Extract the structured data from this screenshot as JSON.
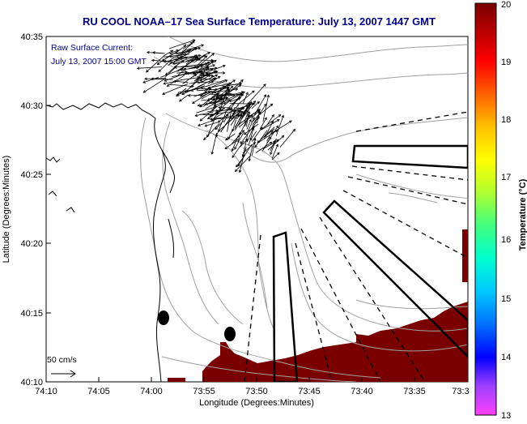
{
  "title": "RU COOL  NOAA–17  Sea Surface Temperature:  July 13, 2007 1447 GMT",
  "annotation": {
    "line1": "Raw Surface Current:",
    "line2": "July 13, 2007 15:00 GMT"
  },
  "scale_label": "50 cm/s",
  "x_axis": {
    "label": "Longitude (Degrees:Minutes)",
    "ticks": [
      "74:10",
      "74:05",
      "74:00",
      "73:55",
      "73:50",
      "73:45",
      "73:40",
      "73:35",
      "73:3"
    ]
  },
  "y_axis": {
    "label": "Latitude (Degrees:Minutes)",
    "ticks": [
      "40:35",
      "40:30",
      "40:25",
      "40:20",
      "40:15",
      "40:10"
    ]
  },
  "colorbar": {
    "label": "Temperature (°C)",
    "ticks": [
      "20",
      "19",
      "18",
      "17",
      "16",
      "15",
      "14",
      "13"
    ],
    "range": [
      13,
      20
    ]
  },
  "colors": {
    "title": "#00008b",
    "sst_high": "#7a0000",
    "coast": "#000000",
    "bathymetry": "#a0a0a0"
  },
  "icons": [
    "marker-dot",
    "scale-arrow"
  ]
}
